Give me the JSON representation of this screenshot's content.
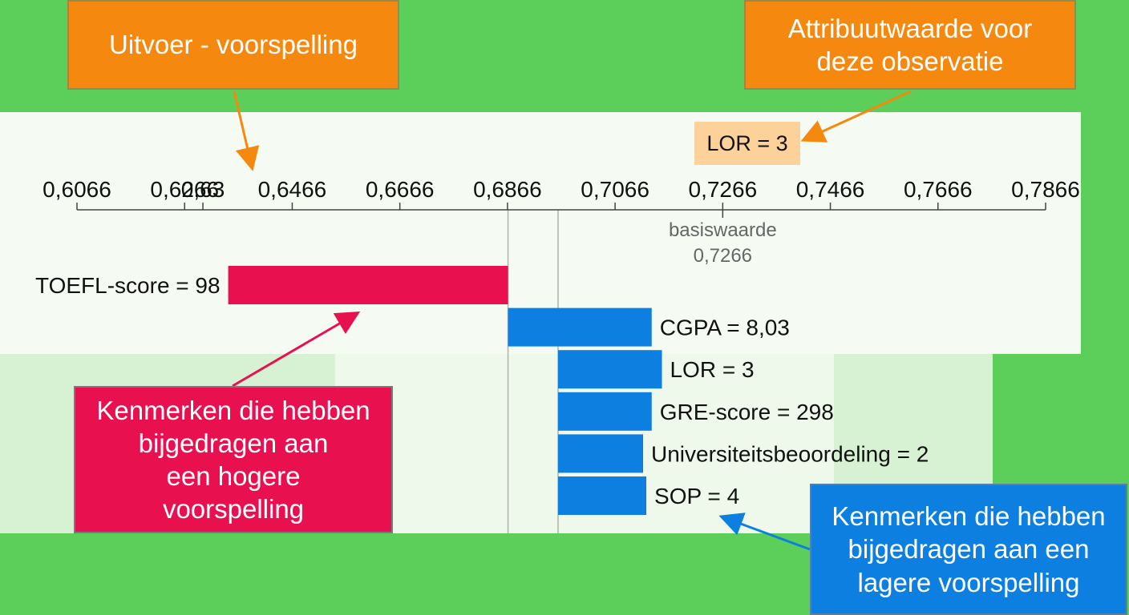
{
  "callouts": {
    "output": "Uitvoer - voorspelling",
    "attribute_value": "Attribuutwaarde voor\ndeze observatie",
    "higher": "Kenmerken die hebben\nbijgedragen aan\neen hogere\nvoorspelling",
    "lower": "Kenmerken die hebben\nbijgedragen aan een\nlagere voorspelling"
  },
  "attribute_box": "LOR = 3",
  "colors": {
    "background": "#5ccf5a",
    "orange": "#f5880e",
    "positive": "#e8104e",
    "negative": "#0c7fe0",
    "attribute_box": "#fdd29a"
  },
  "chart_data": {
    "type": "waterfall",
    "axis_ticks": [
      0.6066,
      0.6266,
      0.6466,
      0.6666,
      0.6866,
      0.7066,
      0.7266,
      0.7466,
      0.7666,
      0.7866
    ],
    "axis_tick_labels": [
      "0,6066",
      "0,6266",
      "0,6466",
      "0,6666",
      "0,6866",
      "0,7066",
      "0,7266",
      "0,7466",
      "0,7666",
      "0,7866"
    ],
    "xlim": [
      0.6066,
      0.7866
    ],
    "prediction": {
      "value": 0.63,
      "label": "0,63"
    },
    "base_value": {
      "value": 0.7266,
      "label": "basiswaarde",
      "value_label": "0,7266"
    },
    "features": [
      {
        "label": "TOEFL-score = 98",
        "start": 0.6347,
        "end": 0.6867,
        "direction": "higher"
      },
      {
        "label": "CGPA = 8,03",
        "start": 0.6867,
        "end": 0.7134,
        "direction": "lower"
      },
      {
        "label": "LOR = 3",
        "start": 0.696,
        "end": 0.7153,
        "direction": "lower"
      },
      {
        "label": "GRE-score = 298",
        "start": 0.696,
        "end": 0.7134,
        "direction": "lower"
      },
      {
        "label": "Universiteitsbeoordeling = 2",
        "start": 0.696,
        "end": 0.7118,
        "direction": "lower"
      },
      {
        "label": "SOP = 4",
        "start": 0.696,
        "end": 0.7124,
        "direction": "lower"
      }
    ],
    "reference_lines": [
      0.6867,
      0.696
    ]
  }
}
